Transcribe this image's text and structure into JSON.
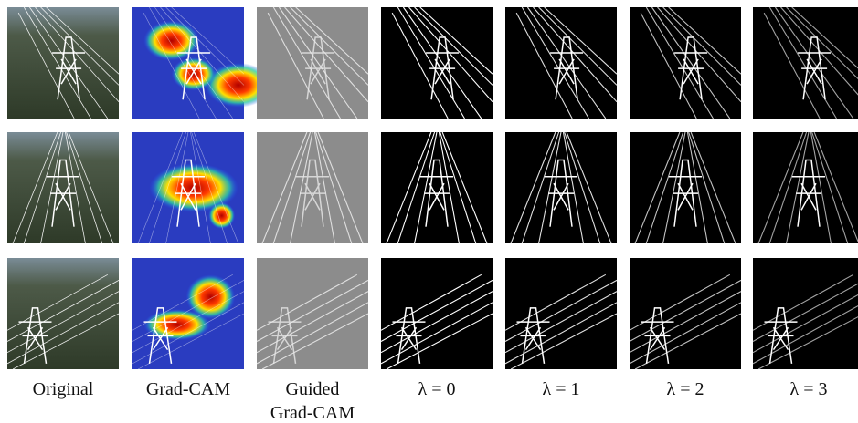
{
  "figure": {
    "columns": [
      "Original",
      "Grad-CAM",
      "Guided Grad-CAM",
      "λ = 0",
      "λ = 1",
      "λ = 2",
      "λ = 3"
    ]
  }
}
